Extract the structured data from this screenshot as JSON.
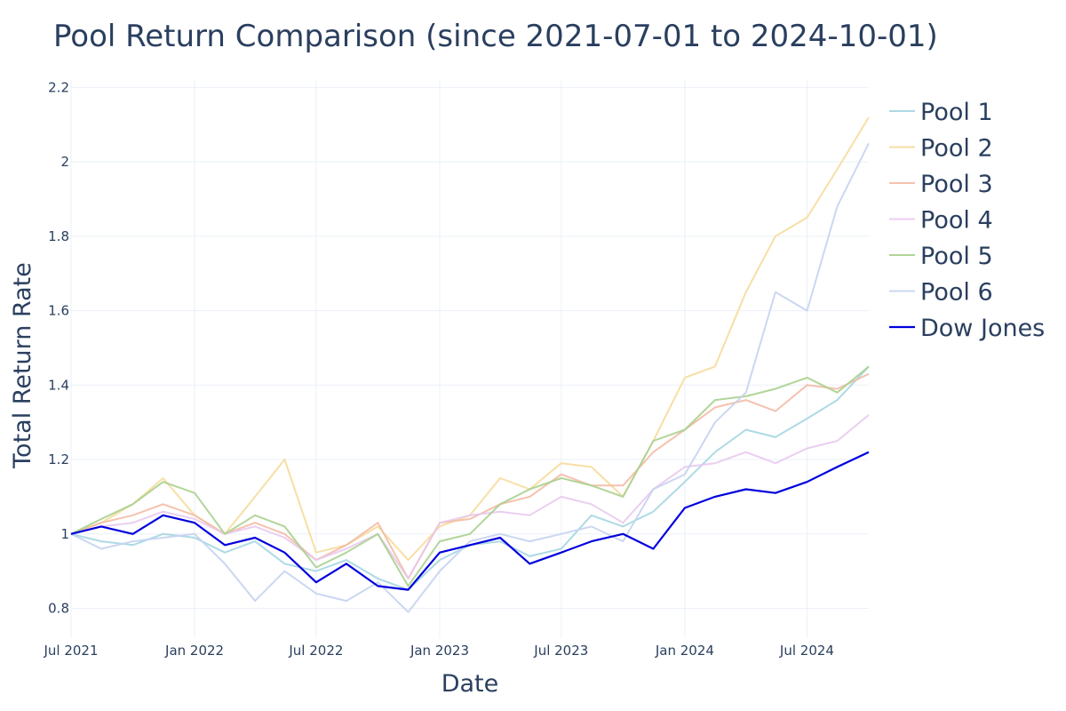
{
  "chart_data": {
    "type": "line",
    "title": "Pool Return Comparison (since 2021-07-01 to 2024-10-01)",
    "xlabel": "Date",
    "ylabel": "Total Return Rate",
    "x_range": [
      "2021-07-01",
      "2024-10-01"
    ],
    "ylim": [
      0.72,
      2.22
    ],
    "x_ticks": [
      {
        "date": "2021-07-01",
        "label": "Jul 2021"
      },
      {
        "date": "2022-01-01",
        "label": "Jan 2022"
      },
      {
        "date": "2022-07-01",
        "label": "Jul 2022"
      },
      {
        "date": "2023-01-01",
        "label": "Jan 2023"
      },
      {
        "date": "2023-07-01",
        "label": "Jul 2023"
      },
      {
        "date": "2024-01-01",
        "label": "Jan 2024"
      },
      {
        "date": "2024-07-01",
        "label": "Jul 2024"
      }
    ],
    "y_ticks": [
      {
        "value": 0.8,
        "label": "0.8"
      },
      {
        "value": 1.0,
        "label": "1"
      },
      {
        "value": 1.2,
        "label": "1.2"
      },
      {
        "value": 1.4,
        "label": "1.4"
      },
      {
        "value": 1.6,
        "label": "1.6"
      },
      {
        "value": 1.8,
        "label": "1.8"
      },
      {
        "value": 2.0,
        "label": "2"
      },
      {
        "value": 2.2,
        "label": "2.2"
      }
    ],
    "grid": true,
    "legend_position": "right",
    "x": [
      "2021-07-01",
      "2021-08-15",
      "2021-10-01",
      "2021-11-15",
      "2022-01-01",
      "2022-02-15",
      "2022-04-01",
      "2022-05-15",
      "2022-07-01",
      "2022-08-15",
      "2022-10-01",
      "2022-11-15",
      "2023-01-01",
      "2023-02-15",
      "2023-04-01",
      "2023-05-15",
      "2023-07-01",
      "2023-08-15",
      "2023-10-01",
      "2023-11-15",
      "2024-01-01",
      "2024-02-15",
      "2024-04-01",
      "2024-05-15",
      "2024-07-01",
      "2024-08-15",
      "2024-10-01"
    ],
    "series": [
      {
        "name": "Pool 1",
        "color": "#9fd4e0",
        "opacity": 0.85,
        "width": 2,
        "values": [
          1.0,
          0.98,
          0.97,
          1.0,
          0.99,
          0.95,
          0.98,
          0.92,
          0.9,
          0.93,
          0.88,
          0.85,
          0.93,
          0.97,
          0.98,
          0.94,
          0.96,
          1.05,
          1.02,
          1.06,
          1.14,
          1.22,
          1.28,
          1.26,
          1.31,
          1.36,
          1.45
        ]
      },
      {
        "name": "Pool 2",
        "color": "#f6dc9a",
        "opacity": 0.9,
        "width": 2,
        "values": [
          1.0,
          1.03,
          1.08,
          1.15,
          1.05,
          1.0,
          1.1,
          1.2,
          0.95,
          0.97,
          1.02,
          0.93,
          1.02,
          1.05,
          1.15,
          1.12,
          1.19,
          1.18,
          1.1,
          1.25,
          1.42,
          1.45,
          1.65,
          1.8,
          1.85,
          1.98,
          2.12
        ]
      },
      {
        "name": "Pool 3",
        "color": "#f3b7a0",
        "opacity": 0.85,
        "width": 2,
        "values": [
          1.0,
          1.03,
          1.05,
          1.08,
          1.05,
          1.0,
          1.03,
          1.0,
          0.93,
          0.97,
          1.03,
          0.88,
          1.03,
          1.04,
          1.08,
          1.1,
          1.16,
          1.13,
          1.13,
          1.22,
          1.28,
          1.34,
          1.36,
          1.33,
          1.4,
          1.39,
          1.43
        ]
      },
      {
        "name": "Pool 4",
        "color": "#e8c6ef",
        "opacity": 0.85,
        "width": 2,
        "values": [
          1.0,
          1.02,
          1.03,
          1.06,
          1.04,
          1.0,
          1.02,
          0.99,
          0.93,
          0.96,
          1.0,
          0.88,
          1.03,
          1.05,
          1.06,
          1.05,
          1.1,
          1.08,
          1.03,
          1.12,
          1.18,
          1.19,
          1.22,
          1.19,
          1.23,
          1.25,
          1.32
        ]
      },
      {
        "name": "Pool 5",
        "color": "#a9d08e",
        "opacity": 0.9,
        "width": 2,
        "values": [
          1.0,
          1.04,
          1.08,
          1.14,
          1.11,
          1.0,
          1.05,
          1.02,
          0.91,
          0.95,
          1.0,
          0.86,
          0.98,
          1.0,
          1.08,
          1.12,
          1.15,
          1.13,
          1.1,
          1.25,
          1.28,
          1.36,
          1.37,
          1.39,
          1.42,
          1.38,
          1.45
        ]
      },
      {
        "name": "Pool 6",
        "color": "#c5d3f0",
        "opacity": 0.9,
        "width": 2,
        "values": [
          1.0,
          0.96,
          0.98,
          0.99,
          1.0,
          0.92,
          0.82,
          0.9,
          0.84,
          0.82,
          0.87,
          0.79,
          0.9,
          0.98,
          1.0,
          0.98,
          1.0,
          1.02,
          0.98,
          1.12,
          1.16,
          1.3,
          1.38,
          1.65,
          1.6,
          1.88,
          2.05
        ]
      },
      {
        "name": "Dow Jones",
        "color": "#0000dd",
        "opacity": 1,
        "width": 2.2,
        "values": [
          1.0,
          1.02,
          1.0,
          1.05,
          1.03,
          0.97,
          0.99,
          0.95,
          0.87,
          0.92,
          0.86,
          0.85,
          0.95,
          0.97,
          0.99,
          0.92,
          0.95,
          0.98,
          1.0,
          0.96,
          1.07,
          1.1,
          1.12,
          1.11,
          1.14,
          1.18,
          1.22
        ]
      }
    ]
  }
}
